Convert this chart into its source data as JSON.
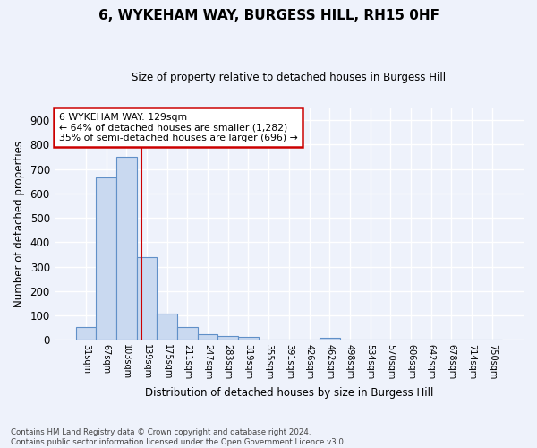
{
  "title1": "6, WYKEHAM WAY, BURGESS HILL, RH15 0HF",
  "title2": "Size of property relative to detached houses in Burgess Hill",
  "xlabel": "Distribution of detached houses by size in Burgess Hill",
  "ylabel": "Number of detached properties",
  "bin_labels": [
    "31sqm",
    "67sqm",
    "103sqm",
    "139sqm",
    "175sqm",
    "211sqm",
    "247sqm",
    "283sqm",
    "319sqm",
    "355sqm",
    "391sqm",
    "426sqm",
    "462sqm",
    "498sqm",
    "534sqm",
    "570sqm",
    "606sqm",
    "642sqm",
    "678sqm",
    "714sqm",
    "750sqm"
  ],
  "bar_heights": [
    52,
    665,
    750,
    338,
    107,
    52,
    25,
    17,
    13,
    0,
    0,
    0,
    9,
    0,
    0,
    0,
    0,
    0,
    0,
    0,
    0
  ],
  "bar_color": "#c9d9f0",
  "bar_edge_color": "#6090c8",
  "annotation_text": "6 WYKEHAM WAY: 129sqm\n← 64% of detached houses are smaller (1,282)\n35% of semi-detached houses are larger (696) →",
  "annotation_box_color": "#ffffff",
  "annotation_box_edgecolor": "#cc0000",
  "footer": "Contains HM Land Registry data © Crown copyright and database right 2024.\nContains public sector information licensed under the Open Government Licence v3.0.",
  "ylim": [
    0,
    950
  ],
  "background_color": "#eef2fb",
  "grid_color": "#ffffff",
  "vline_pos": 2.72
}
